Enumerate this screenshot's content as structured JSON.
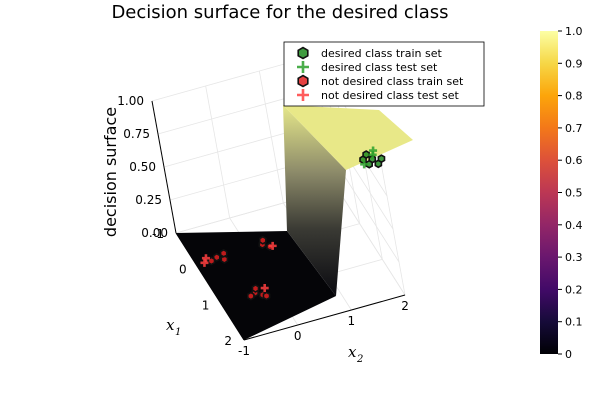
{
  "chart_data": {
    "type": "surface",
    "title": "Decision surface for the desired class",
    "xlabel": "x",
    "xlabel_sub": "1",
    "ylabel": "x",
    "ylabel_sub": "2",
    "zlabel": "decision surface",
    "xlim": [
      -1,
      2
    ],
    "ylim": [
      -1,
      2
    ],
    "zlim": [
      0,
      1
    ],
    "x_ticks": [
      "-1",
      "0",
      "1",
      "2"
    ],
    "y_ticks": [
      "-1",
      "0",
      "1",
      "2"
    ],
    "z_ticks": [
      "0.00",
      "0.25",
      "0.50",
      "0.75",
      "1.00"
    ],
    "grid": true,
    "legend_position": "top-right",
    "surface": {
      "description_values": {
        "low_region_value": 0,
        "high_region_value": 1,
        "transition_x2": [
          0.95,
          1.15
        ]
      }
    },
    "colorbar": {
      "colormap": "inferno",
      "range": [
        0,
        1
      ],
      "ticks": [
        "0",
        "0.1",
        "0.2",
        "0.3",
        "0.4",
        "0.5",
        "0.6",
        "0.7",
        "0.8",
        "0.9",
        "1.0"
      ]
    },
    "series": [
      {
        "name": "desired class train set",
        "marker": "hexagon",
        "color": "#1f8a1f",
        "points": [
          {
            "x1": 1.8,
            "x2": 1.75,
            "z": 1.0
          },
          {
            "x1": 1.85,
            "x2": 1.9,
            "z": 1.0
          },
          {
            "x1": 1.95,
            "x2": 1.8,
            "z": 1.0
          },
          {
            "x1": 1.7,
            "x2": 1.85,
            "z": 1.0
          },
          {
            "x1": 2.0,
            "x2": 1.95,
            "z": 1.0
          },
          {
            "x1": 1.9,
            "x2": 2.05,
            "z": 1.0
          }
        ]
      },
      {
        "name": "desired class test set",
        "marker": "cross",
        "color": "#2ca02c",
        "points": [
          {
            "x1": 1.75,
            "x2": 1.95,
            "z": 1.0
          },
          {
            "x1": 1.65,
            "x2": 2.0,
            "z": 1.0
          },
          {
            "x1": 1.92,
            "x2": 1.72,
            "z": 1.0
          }
        ]
      },
      {
        "name": "not desired class train set",
        "marker": "hexagon",
        "color": "#e02020",
        "points": [
          {
            "x1": -0.15,
            "x2": -0.6,
            "z": 0.0
          },
          {
            "x1": -0.05,
            "x2": -0.5,
            "z": 0.0
          },
          {
            "x1": -0.2,
            "x2": -0.45,
            "z": 0.0
          },
          {
            "x1": -0.1,
            "x2": -0.72,
            "z": 0.0
          },
          {
            "x1": -0.15,
            "x2": 0.25,
            "z": 0.0
          },
          {
            "x1": -0.05,
            "x2": 0.35,
            "z": 0.0
          },
          {
            "x1": -0.25,
            "x2": 0.3,
            "z": 0.0
          },
          {
            "x1": 0.95,
            "x2": -0.35,
            "z": 0.0
          },
          {
            "x1": 1.05,
            "x2": -0.25,
            "z": 0.0
          },
          {
            "x1": 0.85,
            "x2": -0.3,
            "z": 0.0
          },
          {
            "x1": 1.0,
            "x2": -0.45,
            "z": 0.0
          },
          {
            "x1": 1.1,
            "x2": -0.2,
            "z": 0.0
          }
        ]
      },
      {
        "name": "not desired class test set",
        "marker": "cross",
        "color": "#ff4040",
        "points": [
          {
            "x1": -0.1,
            "x2": -0.85,
            "z": 0.0
          },
          {
            "x1": -0.2,
            "x2": -0.78,
            "z": 0.0
          },
          {
            "x1": -0.05,
            "x2": 0.4,
            "z": 0.0
          },
          {
            "x1": 0.9,
            "x2": -0.15,
            "z": 0.0
          }
        ]
      }
    ]
  }
}
